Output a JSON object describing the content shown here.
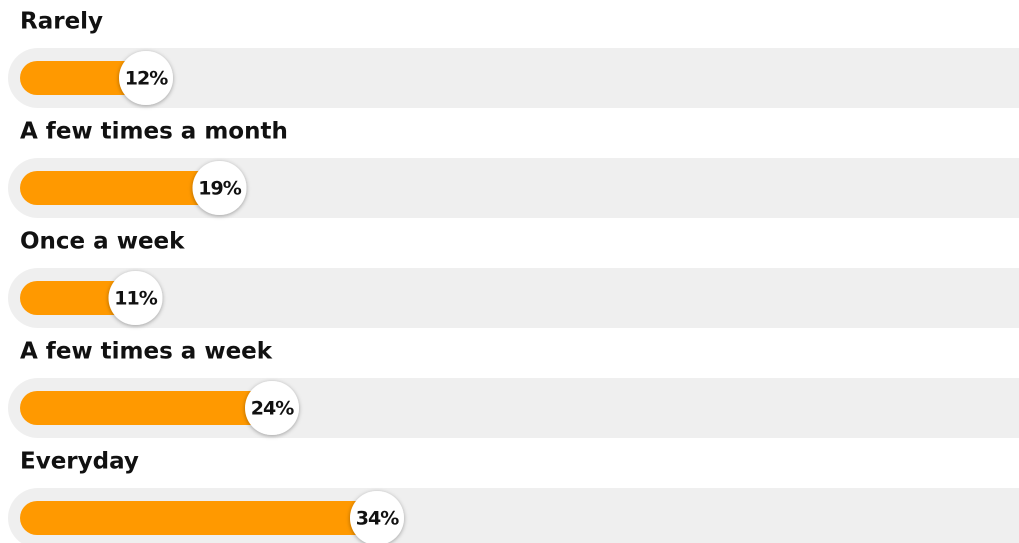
{
  "chart_data": {
    "type": "progress-bar",
    "categories": [
      "Rarely",
      "A few times a month",
      "Once a week",
      "A few times a week",
      "Everyday"
    ],
    "values": [
      12,
      19,
      11,
      24,
      34
    ],
    "value_labels": [
      "12%",
      "19%",
      "11%",
      "24%",
      "34%"
    ],
    "color": "#ff9900",
    "track_color": "#efefef",
    "xlim": [
      0,
      100
    ]
  }
}
